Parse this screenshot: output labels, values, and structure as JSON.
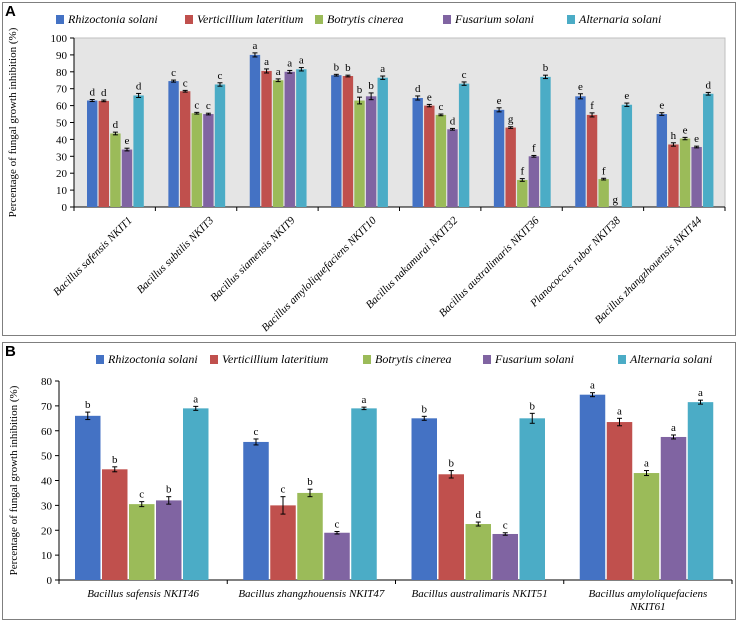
{
  "legend": {
    "items": [
      "Rhizoctonia solani",
      "Verticillium lateritium",
      "Botrytis cinerea",
      "Fusarium solani",
      "Alternaria solani"
    ],
    "colors": [
      "#4472C4",
      "#C0504D",
      "#9BBB59",
      "#8064A2",
      "#4BACC6"
    ]
  },
  "chart_data": [
    {
      "type": "bar",
      "panel": "A",
      "ylabel": "Percentage of fungal growth inhibition (%)",
      "ylim": [
        0,
        100
      ],
      "yticks": [
        0,
        10,
        20,
        30,
        40,
        50,
        60,
        70,
        80,
        90,
        100
      ],
      "categories": [
        "Bacillus safensis NKIT1",
        "Bacillus subtilis NKIT3",
        "Bacillus siamensis NKIT9",
        "Bacillus amyloliquefaciens NKIT10",
        "Bacillus nakamurai NKIT32",
        "Bacillus australimaris NKIT36",
        "Planococcus rubor NKIT38",
        "Bacillus zhangzhouensis NKIT44"
      ],
      "series": [
        {
          "name": "Rhizoctonia solani",
          "values": [
            63,
            74.5,
            90,
            78,
            64.5,
            57.5,
            65.5,
            55
          ],
          "errors": [
            0.6,
            0.6,
            1.2,
            0.5,
            1.2,
            1.2,
            1.5,
            0.8
          ],
          "letters": [
            "d",
            "c",
            "a",
            "b",
            "d",
            "e",
            "e",
            "e"
          ]
        },
        {
          "name": "Verticillium lateritium",
          "values": [
            62.8,
            68.5,
            80.5,
            77.5,
            60,
            47,
            54.5,
            37
          ],
          "errors": [
            0.5,
            0.5,
            1.2,
            0.5,
            0.7,
            0.5,
            1.2,
            1.0
          ],
          "letters": [
            "d",
            "c",
            "a",
            "b",
            "e",
            "g",
            "f",
            "h"
          ]
        },
        {
          "name": "Botrytis cinerea",
          "values": [
            43.5,
            55.5,
            75,
            63,
            54.5,
            16,
            16.5,
            40.5
          ],
          "errors": [
            0.8,
            0.5,
            0.8,
            2.0,
            0.5,
            0.8,
            0.5,
            0.7
          ],
          "letters": [
            "d",
            "c",
            "a",
            "b",
            "c",
            "f",
            "f",
            "e"
          ]
        },
        {
          "name": "Fusarium solani",
          "values": [
            34,
            55,
            80,
            65.5,
            46,
            30,
            0,
            35.5
          ],
          "errors": [
            0.8,
            0.5,
            0.8,
            2.0,
            0.5,
            0.5,
            0,
            0.5
          ],
          "letters": [
            "e",
            "c",
            "a",
            "b",
            "d",
            "f",
            "g",
            "e"
          ]
        },
        {
          "name": "Alternaria solani",
          "values": [
            66,
            72.5,
            81.5,
            76.5,
            73,
            77,
            60.5,
            67
          ],
          "errors": [
            1.2,
            1.0,
            1.0,
            1.0,
            1.0,
            1.0,
            1.0,
            0.8
          ],
          "letters": [
            "d",
            "c",
            "a",
            "a",
            "c",
            "b",
            "e",
            "d"
          ]
        }
      ]
    },
    {
      "type": "bar",
      "panel": "B",
      "ylabel": "Percentage of fungal growth inhibition (%)",
      "ylim": [
        0,
        80
      ],
      "yticks": [
        0,
        10,
        20,
        30,
        40,
        50,
        60,
        70,
        80
      ],
      "categories": [
        "Bacillus safensis NKIT46",
        "Bacillus zhangzhouensis NKIT47",
        "Bacillus australimaris NKIT51",
        "Bacillus amyloliquefaciens NKIT61"
      ],
      "series": [
        {
          "name": "Rhizoctonia solani",
          "values": [
            66,
            55.5,
            65,
            74.5
          ],
          "errors": [
            1.5,
            1.2,
            0.8,
            0.8
          ],
          "letters": [
            "b",
            "c",
            "b",
            "a"
          ]
        },
        {
          "name": "Verticillium lateritium",
          "values": [
            44.5,
            30,
            42.5,
            63.5
          ],
          "errors": [
            1.0,
            3.5,
            1.5,
            1.5
          ],
          "letters": [
            "b",
            "c",
            "b",
            "a"
          ]
        },
        {
          "name": "Botrytis cinerea",
          "values": [
            30.5,
            35,
            22.5,
            43
          ],
          "errors": [
            1.0,
            1.5,
            0.8,
            1.0
          ],
          "letters": [
            "c",
            "b",
            "d",
            "a"
          ]
        },
        {
          "name": "Fusarium solani",
          "values": [
            32,
            19,
            18.5,
            57.5
          ],
          "errors": [
            1.5,
            0.5,
            0.5,
            0.8
          ],
          "letters": [
            "b",
            "c",
            "c",
            "a"
          ]
        },
        {
          "name": "Alternaria solani",
          "values": [
            69,
            69,
            65,
            71.5
          ],
          "errors": [
            0.8,
            0.5,
            2.0,
            0.8
          ],
          "letters": [
            "a",
            "a",
            "b",
            "a"
          ]
        }
      ]
    }
  ],
  "panels": {
    "a_label": "A",
    "b_label": "B"
  }
}
